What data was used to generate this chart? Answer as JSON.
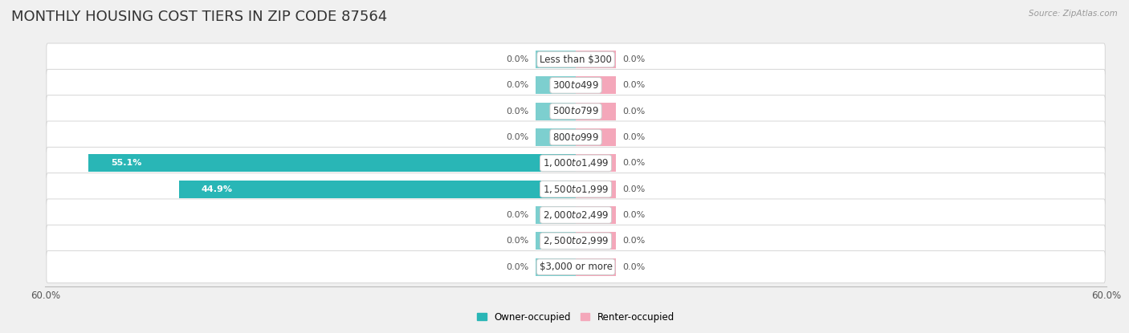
{
  "title": "MONTHLY HOUSING COST TIERS IN ZIP CODE 87564",
  "source": "Source: ZipAtlas.com",
  "categories": [
    "Less than $300",
    "$300 to $499",
    "$500 to $799",
    "$800 to $999",
    "$1,000 to $1,499",
    "$1,500 to $1,999",
    "$2,000 to $2,499",
    "$2,500 to $2,999",
    "$3,000 or more"
  ],
  "owner_values": [
    0.0,
    0.0,
    0.0,
    0.0,
    55.1,
    44.9,
    0.0,
    0.0,
    0.0
  ],
  "renter_values": [
    0.0,
    0.0,
    0.0,
    0.0,
    0.0,
    0.0,
    0.0,
    0.0,
    0.0
  ],
  "owner_color_light": "#7dcfcf",
  "owner_color_dark": "#29b6b6",
  "renter_color": "#f4a7ba",
  "xlim": 60.0,
  "stub_owner": 4.5,
  "stub_renter": 4.5,
  "background_color": "#f0f0f0",
  "row_bg_color": "#ffffff",
  "row_border_color": "#d0d0d0",
  "title_fontsize": 13,
  "label_fontsize": 8.5,
  "value_fontsize": 8.0,
  "legend_owner_label": "Owner-occupied",
  "legend_renter_label": "Renter-occupied"
}
